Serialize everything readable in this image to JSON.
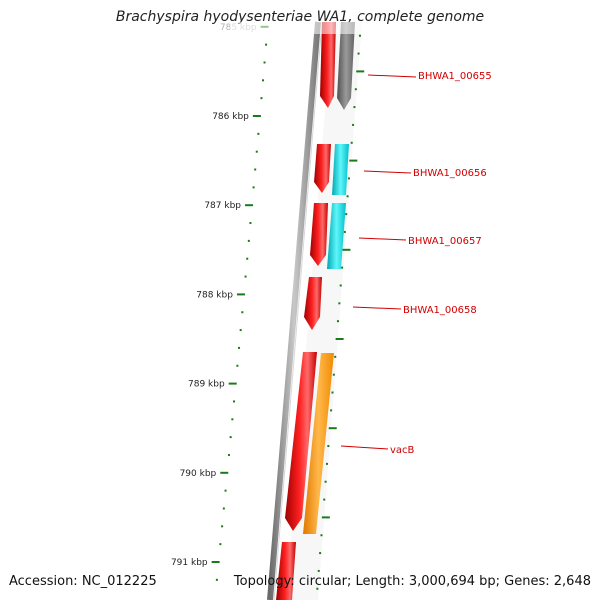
{
  "title": "Brachyspira hyodysenteriae WA1, complete genome",
  "footer": {
    "accession": "Accession: NC_012225",
    "topology": "Topology: circular; Length: 3,000,694 bp; Genes: 2,648"
  },
  "scale": {
    "unit": "kbp",
    "major_ticks": [
      {
        "kbp": 785,
        "label": "785 kbp"
      },
      {
        "kbp": 786,
        "label": "786 kbp"
      },
      {
        "kbp": 787,
        "label": "787 kbp"
      },
      {
        "kbp": 788,
        "label": "788 kbp"
      },
      {
        "kbp": 789,
        "label": "789 kbp"
      },
      {
        "kbp": 790,
        "label": "790 kbp"
      },
      {
        "kbp": 791,
        "label": "791 kbp"
      }
    ]
  },
  "genes": [
    {
      "name": "BHWA1_00655",
      "label": "BHWA1_00655",
      "color": "#8a8a8a"
    },
    {
      "name": "BHWA1_00656",
      "label": "BHWA1_00656",
      "color": "#19e6ec"
    },
    {
      "name": "BHWA1_00657",
      "label": "BHWA1_00657",
      "color": "#19e6ec"
    },
    {
      "name": "BHWA1_00658",
      "label": "BHWA1_00658",
      "color": "#ff0000"
    },
    {
      "name": "vacB",
      "label": "vacB",
      "color": "#ff9c19"
    }
  ],
  "colors": {
    "cds": "#ff0000",
    "backbone": "#9a9a9a",
    "tick": "#1a7a1a",
    "label": "#d10000"
  }
}
